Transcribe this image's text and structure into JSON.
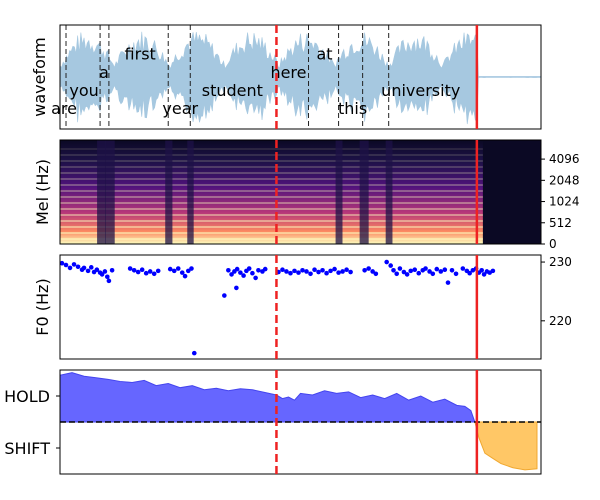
{
  "chart_data": [
    {
      "type": "line",
      "panel": "waveform",
      "ylabel": "waveform",
      "xlim": [
        0,
        12.0
      ],
      "fill_color": "#a6c8e0",
      "word_boundaries": [
        0.15,
        1.0,
        1.22,
        2.7,
        3.25,
        6.2,
        6.95,
        7.55,
        8.2
      ],
      "words": [
        {
          "text": "are",
          "x": 0.1,
          "y": -0.6
        },
        {
          "text": "you",
          "x": 0.6,
          "y": -0.25
        },
        {
          "text": "a",
          "x": 1.1,
          "y": 0.1
        },
        {
          "text": "first",
          "x": 2.0,
          "y": 0.45
        },
        {
          "text": "year",
          "x": 3.0,
          "y": -0.6
        },
        {
          "text": "student",
          "x": 4.3,
          "y": -0.25
        },
        {
          "text": "here",
          "x": 5.7,
          "y": 0.1
        },
        {
          "text": "at",
          "x": 6.6,
          "y": 0.45
        },
        {
          "text": "this",
          "x": 7.3,
          "y": -0.6
        },
        {
          "text": "university",
          "x": 9.0,
          "y": -0.25
        }
      ]
    },
    {
      "type": "heatmap",
      "panel": "mel-spectrogram",
      "ylabel": "Mel (Hz)",
      "yticks": [
        "0",
        "512",
        "1024",
        "2048",
        "4096"
      ],
      "colormap": "magma",
      "silence_after": 10.55
    },
    {
      "type": "scatter",
      "panel": "f0",
      "ylabel": "F0 (Hz)",
      "yticks": [
        220,
        230
      ],
      "ylim": [
        213.5,
        231.2
      ],
      "color": "#0000ff",
      "points": [
        [
          0.05,
          229.8
        ],
        [
          0.15,
          229.5
        ],
        [
          0.25,
          229.0
        ],
        [
          0.35,
          229.6
        ],
        [
          0.45,
          229.2
        ],
        [
          0.55,
          228.7
        ],
        [
          0.6,
          229.0
        ],
        [
          0.7,
          228.5
        ],
        [
          0.78,
          229.1
        ],
        [
          0.85,
          228.3
        ],
        [
          0.92,
          228.7
        ],
        [
          1.0,
          228.2
        ],
        [
          1.05,
          227.9
        ],
        [
          1.12,
          228.4
        ],
        [
          1.18,
          227.5
        ],
        [
          1.22,
          226.8
        ],
        [
          1.3,
          228.6
        ],
        [
          1.75,
          228.9
        ],
        [
          1.85,
          228.6
        ],
        [
          1.95,
          228.3
        ],
        [
          2.05,
          228.7
        ],
        [
          2.15,
          228.1
        ],
        [
          2.25,
          228.4
        ],
        [
          2.35,
          228.0
        ],
        [
          2.45,
          228.5
        ],
        [
          2.75,
          228.8
        ],
        [
          2.85,
          228.5
        ],
        [
          2.95,
          228.9
        ],
        [
          3.05,
          228.2
        ],
        [
          3.12,
          227.6
        ],
        [
          3.2,
          228.5
        ],
        [
          3.28,
          228.9
        ],
        [
          3.35,
          214.5
        ],
        [
          4.1,
          224.3
        ],
        [
          4.4,
          225.6
        ],
        [
          4.2,
          228.6
        ],
        [
          4.28,
          227.9
        ],
        [
          4.35,
          228.4
        ],
        [
          4.42,
          228.8
        ],
        [
          4.5,
          228.2
        ],
        [
          4.58,
          227.7
        ],
        [
          4.65,
          228.5
        ],
        [
          4.72,
          228.9
        ],
        [
          4.8,
          228.1
        ],
        [
          4.88,
          227.3
        ],
        [
          4.95,
          228.6
        ],
        [
          5.05,
          228.4
        ],
        [
          5.12,
          228.8
        ],
        [
          5.45,
          228.3
        ],
        [
          5.55,
          228.7
        ],
        [
          5.65,
          228.4
        ],
        [
          5.75,
          228.1
        ],
        [
          5.85,
          228.5
        ],
        [
          5.95,
          228.2
        ],
        [
          6.05,
          228.6
        ],
        [
          6.15,
          228.4
        ],
        [
          6.25,
          228.0
        ],
        [
          6.35,
          228.7
        ],
        [
          6.45,
          228.3
        ],
        [
          6.55,
          228.6
        ],
        [
          6.65,
          228.1
        ],
        [
          6.75,
          228.5
        ],
        [
          6.85,
          228.8
        ],
        [
          6.95,
          228.2
        ],
        [
          7.05,
          228.4
        ],
        [
          7.15,
          228.7
        ],
        [
          7.25,
          228.3
        ],
        [
          7.6,
          228.6
        ],
        [
          7.7,
          228.9
        ],
        [
          7.8,
          228.4
        ],
        [
          7.88,
          228.0
        ],
        [
          8.15,
          230.0
        ],
        [
          8.25,
          229.4
        ],
        [
          8.32,
          228.6
        ],
        [
          8.4,
          228.0
        ],
        [
          8.48,
          228.9
        ],
        [
          8.58,
          228.3
        ],
        [
          8.66,
          227.9
        ],
        [
          8.75,
          228.5
        ],
        [
          8.85,
          228.7
        ],
        [
          8.95,
          228.1
        ],
        [
          9.05,
          228.6
        ],
        [
          9.12,
          228.9
        ],
        [
          9.22,
          228.4
        ],
        [
          9.3,
          228.0
        ],
        [
          9.4,
          228.8
        ],
        [
          9.5,
          228.4
        ],
        [
          9.6,
          228.7
        ],
        [
          9.68,
          226.5
        ],
        [
          9.78,
          228.6
        ],
        [
          9.88,
          228.0
        ],
        [
          10.05,
          228.9
        ],
        [
          10.15,
          228.5
        ],
        [
          10.22,
          228.1
        ],
        [
          10.3,
          228.6
        ],
        [
          10.38,
          228.9
        ],
        [
          10.45,
          228.2
        ],
        [
          10.52,
          228.6
        ],
        [
          10.58,
          227.9
        ],
        [
          10.65,
          228.4
        ],
        [
          10.72,
          228.2
        ],
        [
          10.8,
          228.5
        ]
      ]
    },
    {
      "type": "area",
      "panel": "turn-taking",
      "yticks": [
        "HOLD",
        "SHIFT"
      ],
      "ylim": [
        -1.0,
        1.0
      ],
      "threshold": 0.0,
      "hold_color": "#6666ff",
      "shift_color": "#ffc766",
      "x": [
        0.0,
        0.3,
        0.6,
        0.9,
        1.2,
        1.5,
        1.8,
        2.1,
        2.4,
        2.7,
        3.0,
        3.3,
        3.6,
        3.9,
        4.2,
        4.5,
        4.8,
        5.1,
        5.4,
        5.55,
        5.7,
        5.85,
        6.0,
        6.3,
        6.6,
        6.9,
        7.2,
        7.5,
        7.8,
        8.1,
        8.4,
        8.7,
        9.0,
        9.3,
        9.6,
        9.9,
        10.1,
        10.25,
        10.35,
        10.45,
        10.6,
        10.8,
        11.0,
        11.3,
        11.6,
        11.9
      ],
      "values": [
        0.9,
        0.95,
        0.88,
        0.85,
        0.82,
        0.78,
        0.76,
        0.8,
        0.7,
        0.74,
        0.66,
        0.7,
        0.62,
        0.65,
        0.6,
        0.64,
        0.62,
        0.57,
        0.52,
        0.45,
        0.48,
        0.42,
        0.55,
        0.52,
        0.6,
        0.55,
        0.58,
        0.47,
        0.52,
        0.45,
        0.55,
        0.42,
        0.5,
        0.38,
        0.44,
        0.32,
        0.3,
        0.22,
        0.0,
        -0.3,
        -0.6,
        -0.7,
        -0.8,
        -0.88,
        -0.92,
        -0.9
      ]
    }
  ],
  "vlines": {
    "dashed_x": 5.4,
    "solid_x": 10.4,
    "color": "#ee2222"
  }
}
